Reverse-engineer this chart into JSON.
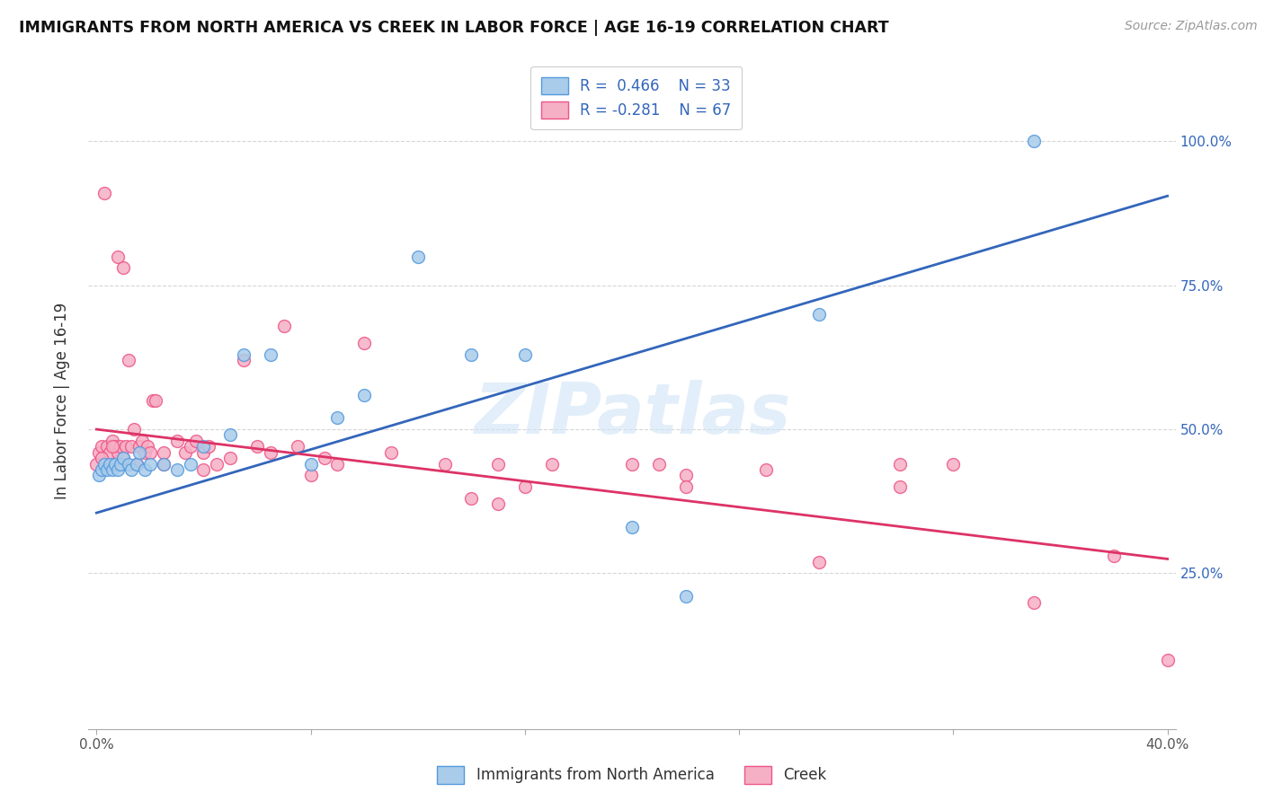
{
  "title": "IMMIGRANTS FROM NORTH AMERICA VS CREEK IN LABOR FORCE | AGE 16-19 CORRELATION CHART",
  "source": "Source: ZipAtlas.com",
  "ylabel": "In Labor Force | Age 16-19",
  "legend_blue_r": "R =  0.466",
  "legend_blue_n": "N = 33",
  "legend_pink_r": "R = -0.281",
  "legend_pink_n": "N = 67",
  "blue_face_color": "#A8CCEA",
  "pink_face_color": "#F5B0C5",
  "blue_edge_color": "#5599DD",
  "pink_edge_color": "#EE5588",
  "blue_line_color": "#3366BB",
  "pink_line_color": "#DD3366",
  "watermark": "ZIPatlas",
  "blue_scatter_x": [
    0.001,
    0.002,
    0.003,
    0.004,
    0.005,
    0.006,
    0.007,
    0.008,
    0.009,
    0.01,
    0.012,
    0.013,
    0.015,
    0.016,
    0.018,
    0.02,
    0.025,
    0.03,
    0.035,
    0.04,
    0.05,
    0.055,
    0.065,
    0.08,
    0.09,
    0.1,
    0.12,
    0.14,
    0.16,
    0.2,
    0.22,
    0.27,
    0.35
  ],
  "blue_scatter_y": [
    0.42,
    0.43,
    0.44,
    0.43,
    0.44,
    0.43,
    0.44,
    0.43,
    0.44,
    0.45,
    0.44,
    0.43,
    0.44,
    0.46,
    0.43,
    0.44,
    0.44,
    0.43,
    0.44,
    0.47,
    0.49,
    0.63,
    0.63,
    0.44,
    0.52,
    0.56,
    0.8,
    0.63,
    0.63,
    0.33,
    0.21,
    0.7,
    1.0
  ],
  "pink_scatter_x": [
    0.0,
    0.001,
    0.002,
    0.003,
    0.004,
    0.005,
    0.006,
    0.007,
    0.008,
    0.009,
    0.01,
    0.011,
    0.012,
    0.013,
    0.014,
    0.015,
    0.016,
    0.017,
    0.018,
    0.019,
    0.02,
    0.021,
    0.022,
    0.025,
    0.03,
    0.033,
    0.035,
    0.037,
    0.04,
    0.042,
    0.045,
    0.05,
    0.055,
    0.06,
    0.065,
    0.07,
    0.075,
    0.085,
    0.09,
    0.1,
    0.11,
    0.13,
    0.14,
    0.15,
    0.16,
    0.17,
    0.2,
    0.21,
    0.22,
    0.25,
    0.27,
    0.3,
    0.32,
    0.35,
    0.006,
    0.008,
    0.01,
    0.015,
    0.025,
    0.04,
    0.08,
    0.15,
    0.22,
    0.3,
    0.38,
    0.4,
    0.002
  ],
  "pink_scatter_y": [
    0.44,
    0.46,
    0.47,
    0.91,
    0.47,
    0.46,
    0.48,
    0.47,
    0.46,
    0.47,
    0.45,
    0.47,
    0.62,
    0.47,
    0.5,
    0.44,
    0.47,
    0.48,
    0.46,
    0.47,
    0.46,
    0.55,
    0.55,
    0.46,
    0.48,
    0.46,
    0.47,
    0.48,
    0.46,
    0.47,
    0.44,
    0.45,
    0.62,
    0.47,
    0.46,
    0.68,
    0.47,
    0.45,
    0.44,
    0.65,
    0.46,
    0.44,
    0.38,
    0.44,
    0.4,
    0.44,
    0.44,
    0.44,
    0.42,
    0.43,
    0.27,
    0.44,
    0.44,
    0.2,
    0.47,
    0.8,
    0.78,
    0.44,
    0.44,
    0.43,
    0.42,
    0.37,
    0.4,
    0.4,
    0.28,
    0.1,
    0.45
  ]
}
